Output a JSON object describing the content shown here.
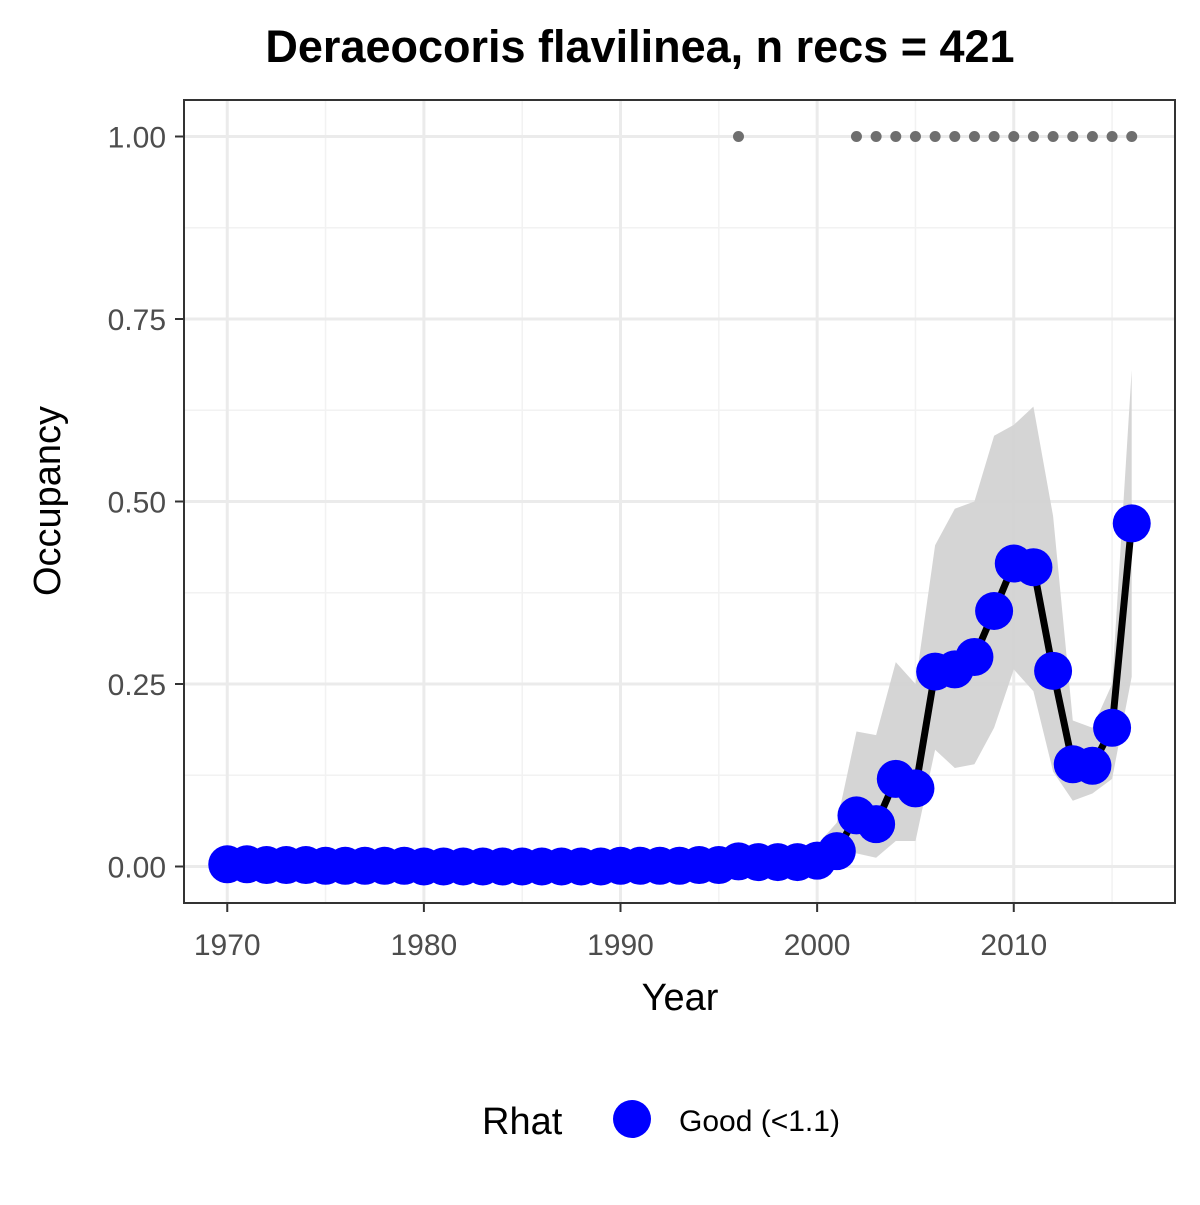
{
  "chart_data": {
    "type": "line",
    "title": "Deraeocoris flavilinea, n recs = 421",
    "xlabel": "Year",
    "ylabel": "Occupancy",
    "xlim": [
      1967.8,
      2018.2
    ],
    "ylim": [
      -0.05,
      1.05
    ],
    "x_ticks": [
      1970,
      1980,
      1990,
      2000,
      2010
    ],
    "x_tick_labels": [
      "1970",
      "1980",
      "1990",
      "2000",
      "2010"
    ],
    "y_ticks": [
      0,
      0.25,
      0.5,
      0.75,
      1.0
    ],
    "y_tick_labels": [
      "0.00",
      "0.25",
      "0.50",
      "0.75",
      "1.00"
    ],
    "grid": true,
    "legend": {
      "title": "Rhat",
      "placement": "bottom",
      "entries": [
        {
          "label": "Good (<1.1)",
          "color": "#0000ff"
        }
      ]
    },
    "colors": {
      "points": "#0000ff",
      "line": "#000000",
      "ribbon": "#d3d3d3",
      "record_markers": "#6e6e6e"
    },
    "x": [
      1970,
      1971,
      1972,
      1973,
      1974,
      1975,
      1976,
      1977,
      1978,
      1979,
      1980,
      1981,
      1982,
      1983,
      1984,
      1985,
      1986,
      1987,
      1988,
      1989,
      1990,
      1991,
      1992,
      1993,
      1994,
      1995,
      1996,
      1997,
      1998,
      1999,
      2000,
      2001,
      2002,
      2003,
      2004,
      2005,
      2006,
      2007,
      2008,
      2009,
      2010,
      2011,
      2012,
      2013,
      2014,
      2015,
      2016
    ],
    "series": [
      {
        "values": [
          0.003,
          0.003,
          0.002,
          0.002,
          0.002,
          0.001,
          0.001,
          0.001,
          0.001,
          0.001,
          0.0,
          0.0,
          0.0,
          0.0,
          0.0,
          0.0,
          0.0,
          0.0,
          0.0,
          0.0,
          0.001,
          0.001,
          0.001,
          0.001,
          0.002,
          0.002,
          0.007,
          0.006,
          0.006,
          0.006,
          0.008,
          0.021,
          0.07,
          0.058,
          0.12,
          0.107,
          0.267,
          0.27,
          0.287,
          0.35,
          0.415,
          0.41,
          0.268,
          0.14,
          0.138,
          0.19,
          0.47
        ],
        "lower": [
          0.0,
          0.0,
          0.0,
          0.0,
          0.0,
          0.0,
          0.0,
          0.0,
          0.0,
          0.0,
          0.0,
          0.0,
          0.0,
          0.0,
          0.0,
          0.0,
          0.0,
          0.0,
          0.0,
          0.0,
          0.0,
          0.0,
          0.0,
          0.0,
          0.0,
          0.0,
          0.0,
          0.0,
          0.0,
          0.0,
          0.0,
          0.003,
          0.018,
          0.012,
          0.035,
          0.035,
          0.16,
          0.135,
          0.14,
          0.19,
          0.27,
          0.24,
          0.13,
          0.09,
          0.1,
          0.12,
          0.26
        ],
        "upper": [
          0.02,
          0.02,
          0.02,
          0.02,
          0.02,
          0.02,
          0.02,
          0.02,
          0.02,
          0.02,
          0.02,
          0.02,
          0.02,
          0.02,
          0.02,
          0.02,
          0.02,
          0.02,
          0.02,
          0.02,
          0.02,
          0.02,
          0.02,
          0.02,
          0.02,
          0.02,
          0.025,
          0.025,
          0.025,
          0.025,
          0.03,
          0.06,
          0.185,
          0.18,
          0.28,
          0.25,
          0.44,
          0.49,
          0.5,
          0.59,
          0.605,
          0.63,
          0.48,
          0.2,
          0.19,
          0.25,
          0.68
        ]
      }
    ],
    "record_years": [
      1996,
      2002,
      2003,
      2004,
      2005,
      2006,
      2007,
      2008,
      2009,
      2010,
      2011,
      2012,
      2013,
      2014,
      2015,
      2016
    ],
    "record_y": 1.0
  }
}
